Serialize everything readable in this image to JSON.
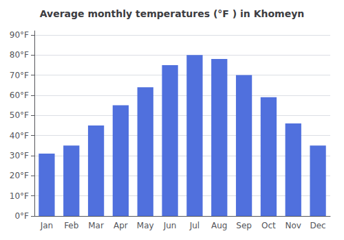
{
  "chart_data": {
    "type": "bar",
    "title": "Average monthly temperatures (°F ) in Khomeyn",
    "categories": [
      "Jan",
      "Feb",
      "Mar",
      "Apr",
      "May",
      "Jun",
      "Jul",
      "Aug",
      "Sep",
      "Oct",
      "Nov",
      "Dec"
    ],
    "values": [
      31,
      35,
      45,
      55,
      64,
      75,
      80,
      78,
      70,
      59,
      46,
      35
    ],
    "ylim": [
      0,
      92
    ],
    "yticks": [
      {
        "value": 0,
        "label": "0°F"
      },
      {
        "value": 10,
        "label": "10°F"
      },
      {
        "value": 20,
        "label": "20°F"
      },
      {
        "value": 30,
        "label": "30°F"
      },
      {
        "value": 40,
        "label": "40°F"
      },
      {
        "value": 50,
        "label": "50°F"
      },
      {
        "value": 60,
        "label": "60°F"
      },
      {
        "value": 70,
        "label": "70°F"
      },
      {
        "value": 80,
        "label": "80°F"
      },
      {
        "value": 90,
        "label": "90°F"
      }
    ],
    "grid": true
  }
}
